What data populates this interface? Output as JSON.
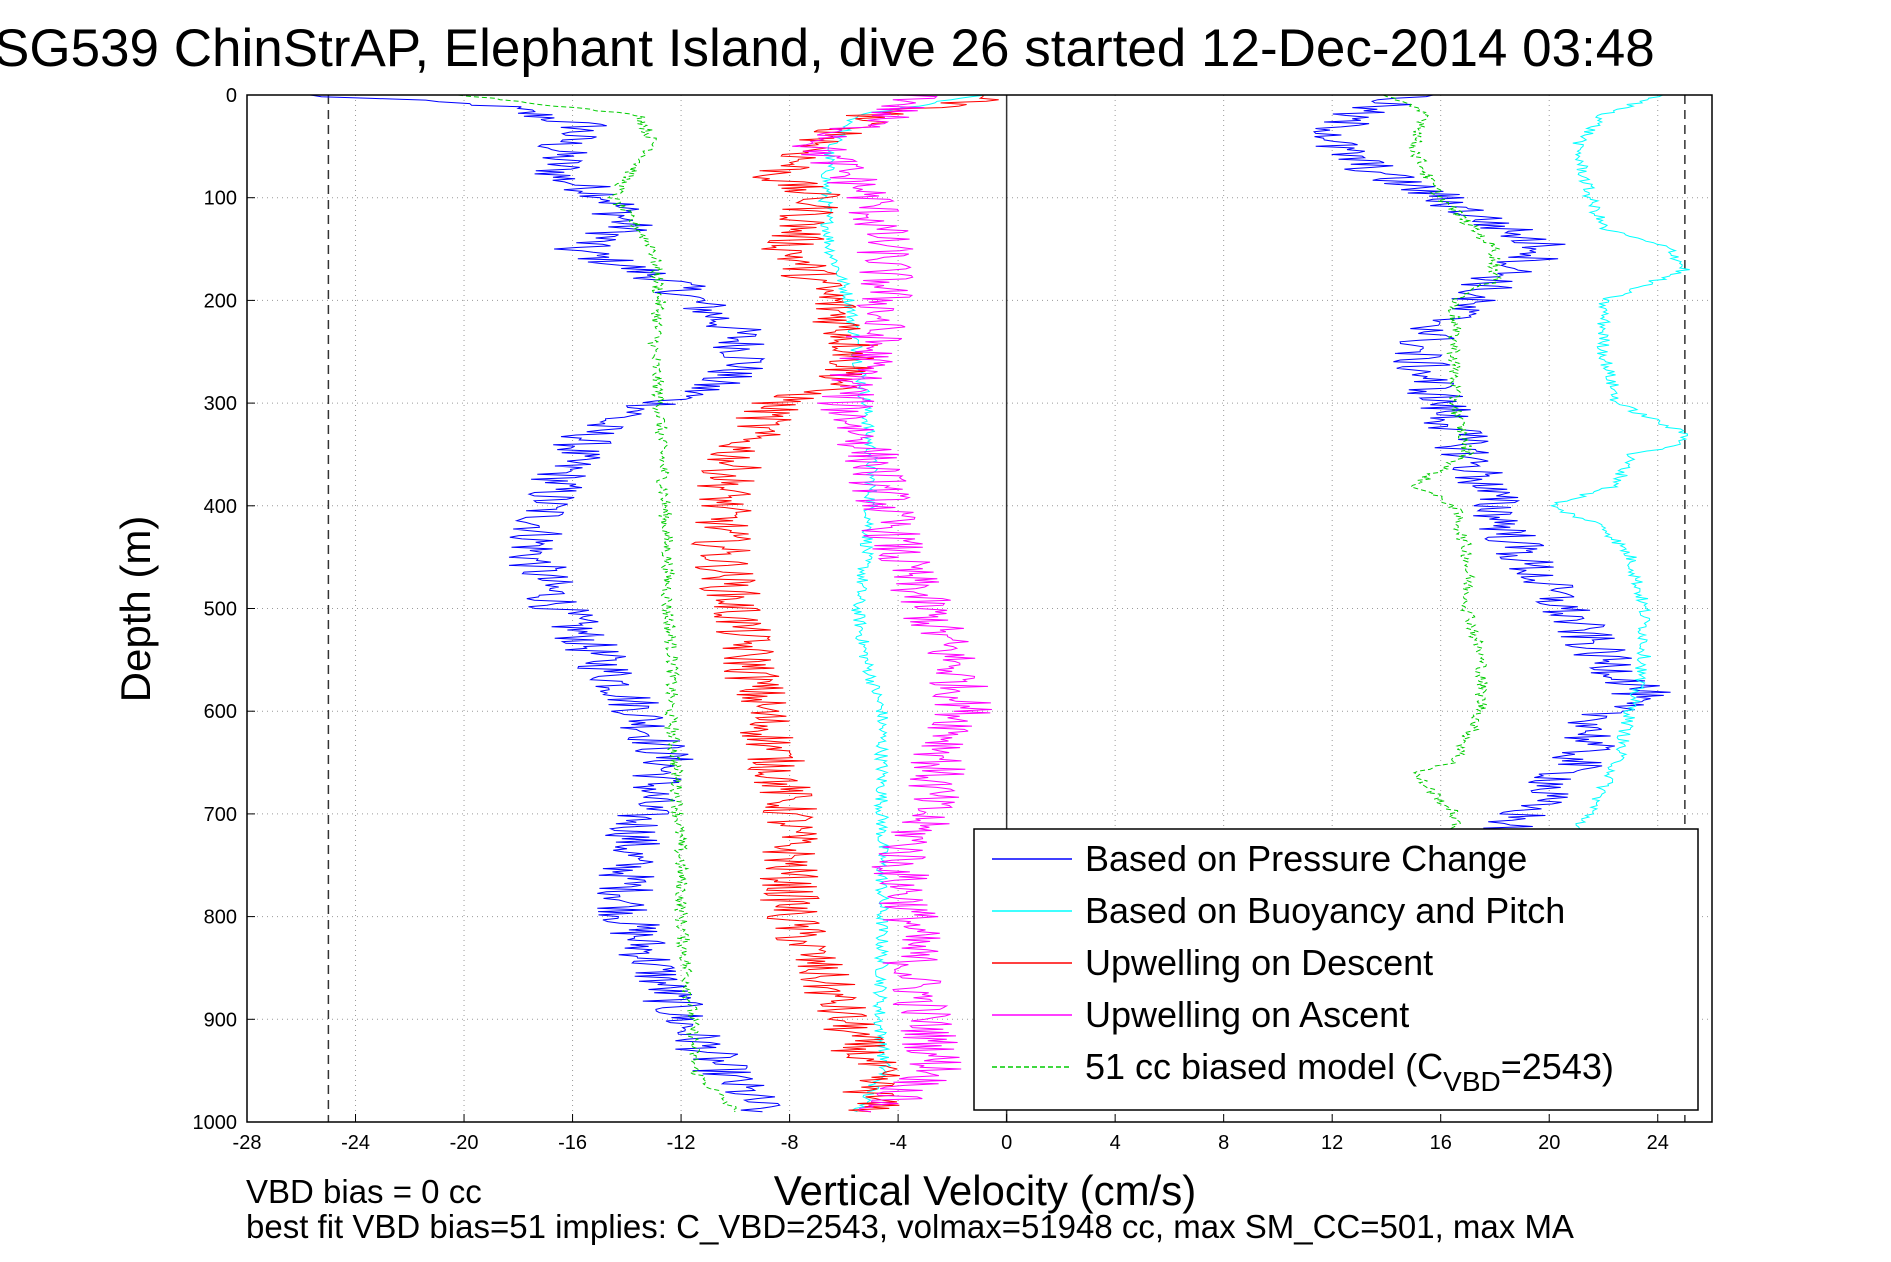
{
  "chart_data": {
    "type": "line",
    "title": "SG539 ChinStrAP, Elephant Island, dive 26 started 12-Dec-2014 03:48",
    "xlabel": "Vertical Velocity (cm/s)",
    "ylabel": "Depth (m)",
    "xlim": [
      -28,
      26
    ],
    "ylim": [
      1000,
      0
    ],
    "y_reversed": true,
    "grid": true,
    "x_ticks": [
      -28,
      -24,
      -20,
      -16,
      -12,
      -8,
      -4,
      0,
      4,
      8,
      12,
      16,
      20,
      24
    ],
    "y_ticks": [
      0,
      100,
      200,
      300,
      400,
      500,
      600,
      700,
      800,
      900,
      1000
    ],
    "reference_lines_x": [
      -25,
      0,
      25
    ],
    "legend_position": "bottom-right",
    "legend": [
      {
        "label": "Based on Pressure Change",
        "color": "#0000ff",
        "dash": "solid"
      },
      {
        "label": "Based on Buoyancy and Pitch",
        "color": "#00ffff",
        "dash": "solid"
      },
      {
        "label": "Upwelling on Descent",
        "color": "#ff0000",
        "dash": "solid"
      },
      {
        "label": "Upwelling on Ascent",
        "color": "#ff00ff",
        "dash": "solid"
      },
      {
        "label": "51 cc biased model (C",
        "sub": "VBD",
        "tail": "=2543)",
        "color": "#00cc00",
        "dash": "dashed"
      }
    ],
    "series": [
      {
        "name": "Based on Pressure Change (descent)",
        "color": "#0000ff",
        "depth": [
          0,
          10,
          30,
          50,
          80,
          100,
          130,
          150,
          180,
          200,
          230,
          260,
          290,
          320,
          350,
          400,
          450,
          500,
          550,
          600,
          650,
          700,
          750,
          800,
          850,
          900,
          950,
          990
        ],
        "values": [
          -26,
          -19,
          -15.5,
          -16.5,
          -16.5,
          -14.5,
          -14,
          -16,
          -12.5,
          -11.5,
          -10,
          -9.5,
          -11.5,
          -15,
          -16,
          -17,
          -17.5,
          -16.5,
          -15,
          -13.5,
          -12.5,
          -13.5,
          -14,
          -14,
          -13,
          -12,
          -10.5,
          -9
        ]
      },
      {
        "name": "Based on Buoyancy and Pitch (descent)",
        "color": "#00ffff",
        "depth": [
          0,
          20,
          50,
          100,
          150,
          200,
          250,
          300,
          350,
          400,
          450,
          500,
          550,
          600,
          650,
          700,
          750,
          800,
          850,
          900,
          950,
          990
        ],
        "values": [
          -1,
          -5.5,
          -6.5,
          -6.7,
          -6.5,
          -5.8,
          -5.5,
          -5.2,
          -5,
          -5,
          -5.2,
          -5.5,
          -5.2,
          -4.6,
          -4.6,
          -4.6,
          -4.6,
          -4.6,
          -4.6,
          -4.7,
          -4.5,
          -5.5
        ]
      },
      {
        "name": "51 cc biased model (descent)",
        "color": "#00cc00",
        "depth": [
          0,
          20,
          50,
          80,
          100,
          150,
          200,
          250,
          300,
          350,
          400,
          450,
          500,
          550,
          600,
          650,
          700,
          750,
          800,
          850,
          900,
          950,
          990
        ],
        "values": [
          -20,
          -13.5,
          -13,
          -14,
          -14.5,
          -13,
          -12.8,
          -13,
          -12.8,
          -12.7,
          -12.6,
          -12.5,
          -12.5,
          -12.3,
          -12.4,
          -12.2,
          -12.1,
          -12,
          -12,
          -11.8,
          -11.6,
          -11.5,
          -10
        ]
      },
      {
        "name": "Upwelling on Descent",
        "color": "#ff0000",
        "depth": [
          0,
          20,
          50,
          80,
          100,
          150,
          200,
          250,
          280,
          300,
          350,
          400,
          450,
          500,
          550,
          600,
          650,
          700,
          750,
          800,
          850,
          900,
          950,
          990
        ],
        "values": [
          0,
          -5,
          -7,
          -8.5,
          -7,
          -8,
          -6.5,
          -5.5,
          -6,
          -8.5,
          -10,
          -10.5,
          -10.5,
          -10,
          -9.5,
          -9,
          -8.5,
          -8,
          -8,
          -8,
          -7,
          -6,
          -5,
          -5
        ]
      },
      {
        "name": "Upwelling on Ascent",
        "color": "#ff00ff",
        "depth": [
          0,
          20,
          50,
          100,
          150,
          200,
          250,
          300,
          350,
          400,
          450,
          500,
          550,
          600,
          650,
          700,
          750,
          800,
          850,
          900,
          950,
          990
        ],
        "values": [
          -3,
          -4.5,
          -7,
          -5,
          -4.5,
          -4.5,
          -5,
          -6,
          -5,
          -4.5,
          -4,
          -3,
          -2,
          -1.5,
          -2.5,
          -3,
          -4,
          -3.5,
          -3.5,
          -3,
          -2.5,
          -5
        ]
      },
      {
        "name": "Based on Pressure Change (ascent)",
        "color": "#0000ff",
        "depth": [
          0,
          20,
          50,
          80,
          100,
          120,
          150,
          180,
          200,
          250,
          300,
          350,
          400,
          450,
          500,
          550,
          580,
          600,
          650,
          700,
          720
        ],
        "values": [
          15,
          12.5,
          12,
          14,
          16,
          17.5,
          20,
          18,
          17,
          15,
          16,
          17,
          18,
          19,
          20.5,
          22,
          23.5,
          22,
          21,
          19,
          18
        ]
      },
      {
        "name": "Based on Buoyancy and Pitch (ascent)",
        "color": "#00ffff",
        "depth": [
          0,
          20,
          50,
          100,
          130,
          150,
          170,
          200,
          250,
          300,
          330,
          340,
          350,
          380,
          400,
          420,
          450,
          500,
          550,
          600,
          650,
          700,
          730
        ],
        "values": [
          24,
          22,
          21,
          21.5,
          22,
          24.5,
          25,
          22,
          22,
          22.5,
          25,
          25,
          23,
          22.5,
          20,
          22,
          23,
          23.5,
          23.5,
          23,
          22.5,
          21.5,
          20.5
        ]
      },
      {
        "name": "51 cc biased model (ascent)",
        "color": "#00cc00",
        "depth": [
          0,
          20,
          50,
          80,
          100,
          150,
          180,
          200,
          250,
          300,
          350,
          380,
          400,
          450,
          500,
          550,
          600,
          650,
          660,
          700,
          720
        ],
        "values": [
          14,
          15.5,
          15,
          15.5,
          16,
          18,
          18,
          16.5,
          16.5,
          16.5,
          17,
          15,
          16.5,
          17,
          17,
          17.5,
          17.5,
          16.5,
          15,
          16.5,
          16.5
        ]
      }
    ]
  },
  "footer": {
    "line1": "VBD bias = 0 cc",
    "line2": "best fit VBD bias=51 implies: C_VBD=2543, volmax=51948 cc, max SM_CC=501, max MA"
  }
}
